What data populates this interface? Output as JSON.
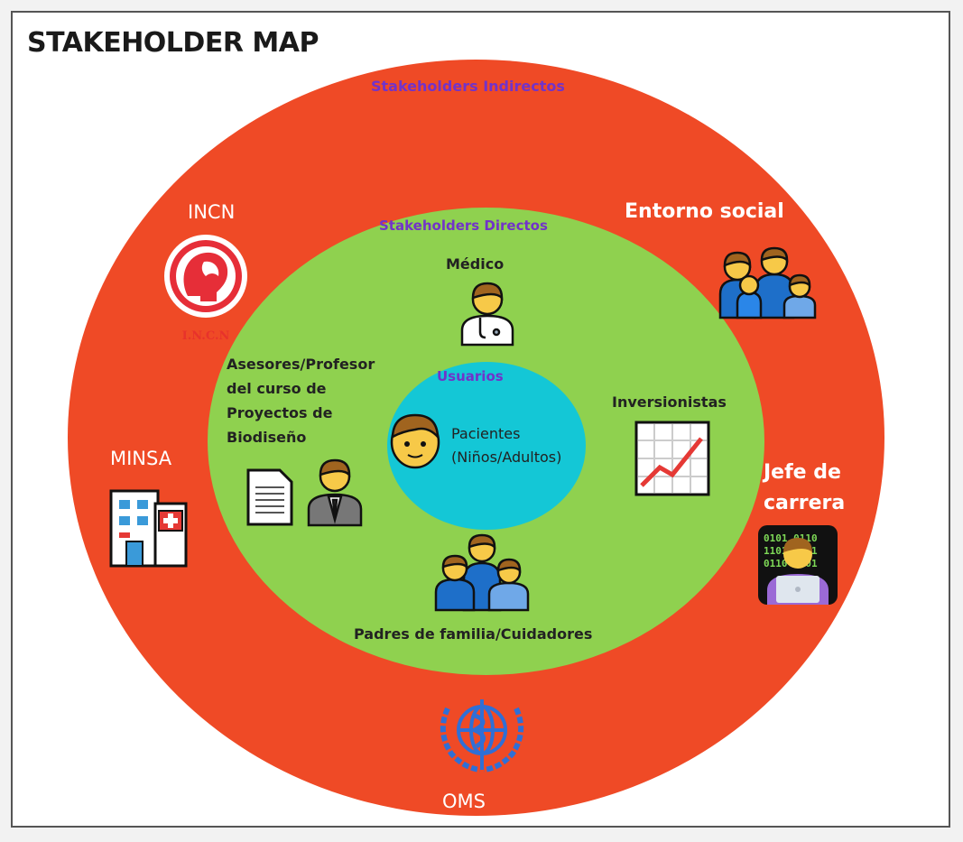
{
  "title": "STAKEHOLDER MAP",
  "colors": {
    "outer_ring": "#ef4a26",
    "inner_ring": "#8fd14f",
    "core": "#14c7d6",
    "ring_label": "#7233c9",
    "outer_stakeholder_text": "#ffffff",
    "inner_stakeholder_text": "#222222"
  },
  "rings": {
    "outer_label": "Stakeholders Indirectos",
    "inner_label": "Stakeholders Directos",
    "core_label": "Usuarios"
  },
  "outer_stakeholders": [
    {
      "label": "INCN",
      "icon": "incn-logo-icon",
      "logo_text": "I.N.C.N"
    },
    {
      "label": "Entorno social",
      "icon": "family-group-icon"
    },
    {
      "label": "MINSA",
      "icon": "hospital-icon"
    },
    {
      "label": "Jefe de\ncarrera",
      "icon": "technologist-icon"
    },
    {
      "label": "OMS",
      "icon": "who-emblem-icon"
    }
  ],
  "inner_stakeholders": [
    {
      "label": "Médico",
      "icon": "doctor-icon"
    },
    {
      "label": "Asesores/Profesor\ndel curso de\nProyectos de\nBiodiseño",
      "icon": "document-and-businessman-icon"
    },
    {
      "label": "Inversionistas",
      "icon": "growth-chart-icon"
    },
    {
      "label": "Padres de familia/Cuidadores",
      "icon": "family-group-icon"
    }
  ],
  "core_stakeholders": [
    {
      "label": "Pacientes\n(Niños/Adultos)",
      "icon": "patient-face-icon"
    }
  ]
}
